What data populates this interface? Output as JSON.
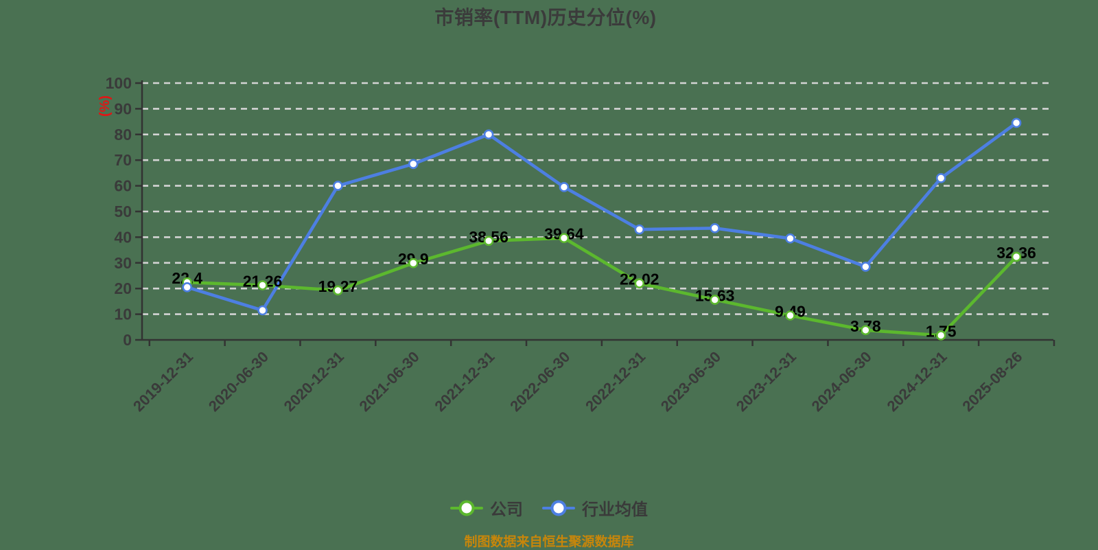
{
  "title": "市销率(TTM)历史分位(%)",
  "footer": "制图数据来自恒生聚源数据库",
  "chart_data": {
    "type": "line",
    "title": "市销率(TTM)历史分位(%)",
    "xlabel": "",
    "ylabel": "(%)",
    "ylim": [
      0,
      100
    ],
    "ystep": 10,
    "y_ticks": [
      0,
      10,
      20,
      30,
      40,
      50,
      60,
      70,
      80,
      90,
      100
    ],
    "grid": true,
    "grid_style": "dashed",
    "legend_position": "bottom",
    "categories": [
      "2019-12-31",
      "2020-06-30",
      "2020-12-31",
      "2021-06-30",
      "2021-12-31",
      "2022-06-30",
      "2022-12-31",
      "2023-06-30",
      "2023-12-31",
      "2024-06-30",
      "2024-12-31",
      "2025-08-26"
    ],
    "series": [
      {
        "id": "company",
        "name": "公司",
        "color": "#5cb82e",
        "show_labels": true,
        "values": [
          22.4,
          21.26,
          19.27,
          29.9,
          38.56,
          39.64,
          22.02,
          15.63,
          9.49,
          3.78,
          1.75,
          32.36
        ],
        "labels": [
          "22.4",
          "21.26",
          "19.27",
          "29.9",
          "38.56",
          "39.64",
          "22.02",
          "15.63",
          "9.49",
          "3.78",
          "1.75",
          "32.36"
        ]
      },
      {
        "id": "industry-average",
        "name": "行业均值",
        "color": "#4d7fe2",
        "show_labels": false,
        "values": [
          20.5,
          11.5,
          60,
          68.5,
          80,
          59.5,
          43,
          43.5,
          39.5,
          28.5,
          63,
          84.5
        ],
        "labels": []
      }
    ]
  },
  "colors": {
    "background": "#4a7152",
    "grid": "#d4d4d4",
    "axis": "#333333",
    "tick_label": "#3a3a3a",
    "value_label": "#000000",
    "y_unit_label": "#e11515",
    "title": "#3b3b3b",
    "footer": "#c8860a",
    "legend_text": "#3a3a3a",
    "marker_fill": "#ffffff"
  }
}
